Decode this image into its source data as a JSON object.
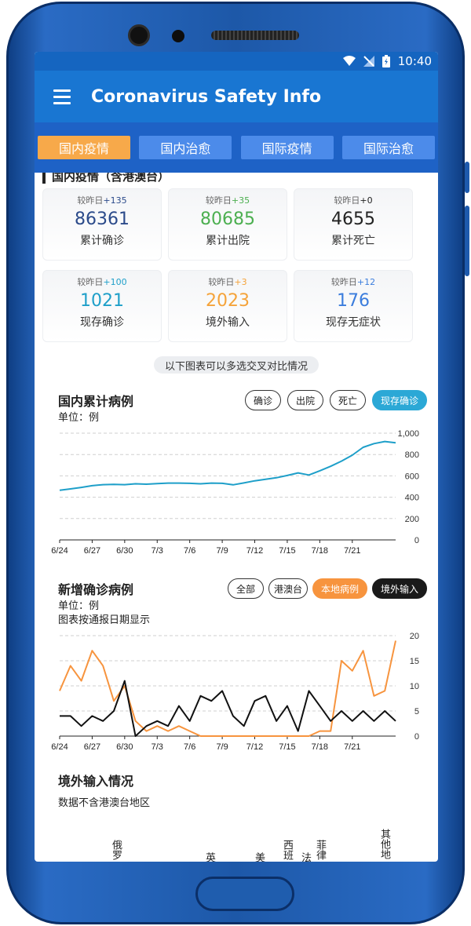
{
  "status_bar": {
    "time": "10:40"
  },
  "app_bar": {
    "title": "Coronavirus Safety Info"
  },
  "tabs": [
    {
      "label": "国内疫情",
      "active": true
    },
    {
      "label": "国内治愈",
      "active": false
    },
    {
      "label": "国际疫情",
      "active": false
    },
    {
      "label": "国际治愈",
      "active": false
    }
  ],
  "section_heading": "国内疫情（含港澳台）",
  "stats": [
    {
      "delta_label": "较昨日",
      "delta": "+135",
      "value": "86361",
      "label": "累计确诊",
      "color": "#2b4a8a"
    },
    {
      "delta_label": "较昨日",
      "delta": "+35",
      "value": "80685",
      "label": "累计出院",
      "color": "#4caf50"
    },
    {
      "delta_label": "较昨日",
      "delta": "+0",
      "value": "4655",
      "label": "累计死亡",
      "color": "#222222"
    },
    {
      "delta_label": "较昨日",
      "delta": "+100",
      "value": "1021",
      "label": "现存确诊",
      "color": "#1e9fc9"
    },
    {
      "delta_label": "较昨日",
      "delta": "+3",
      "value": "2023",
      "label": "境外输入",
      "color": "#f5a33a"
    },
    {
      "delta_label": "较昨日",
      "delta": "+12",
      "value": "176",
      "label": "现存无症状",
      "color": "#3b7ddd"
    }
  ],
  "hint": "以下图表可以多选交叉对比情况",
  "cumulative": {
    "title": "国内累计病例",
    "unit": "单位：例",
    "buttons": [
      {
        "label": "确诊",
        "selected": false
      },
      {
        "label": "出院",
        "selected": false
      },
      {
        "label": "死亡",
        "selected": false
      },
      {
        "label": "现存确诊",
        "selected": true
      }
    ]
  },
  "daily": {
    "title": "新增确诊病例",
    "unit": "单位：例",
    "note": "图表按通报日期显示",
    "buttons": [
      {
        "label": "全部",
        "style": "outline"
      },
      {
        "label": "港澳台",
        "style": "outline"
      },
      {
        "label": "本地病例",
        "style": "orange"
      },
      {
        "label": "境外输入",
        "style": "black"
      }
    ]
  },
  "imports": {
    "title": "境外输入情况",
    "note": "数据不含港澳台地区",
    "countries": [
      "俄罗",
      "英",
      "美",
      "西班",
      "法",
      "菲律",
      "其他地"
    ]
  },
  "chart_data": [
    {
      "type": "line",
      "title": "国内累计病例",
      "ylabel": "单位：例",
      "ylim": [
        0,
        1000
      ],
      "yticks": [
        0,
        200,
        400,
        600,
        800,
        1000
      ],
      "ytick_labels": [
        "0",
        "200",
        "400",
        "600",
        "800",
        "1,000"
      ],
      "x_tick_labels": [
        "6/24",
        "6/27",
        "6/30",
        "7/3",
        "7/6",
        "7/9",
        "7/12",
        "7/15",
        "7/18",
        "7/21"
      ],
      "series": [
        {
          "name": "现存确诊",
          "color": "#1e9fc9",
          "values": [
            465,
            478,
            492,
            508,
            518,
            520,
            518,
            526,
            522,
            528,
            532,
            532,
            530,
            526,
            532,
            530,
            516,
            534,
            554,
            568,
            582,
            604,
            628,
            608,
            648,
            690,
            738,
            794,
            868,
            902,
            922,
            910
          ]
        }
      ],
      "grid": true
    },
    {
      "type": "line",
      "title": "新增确诊病例",
      "ylabel": "单位：例",
      "ylim": [
        0,
        20
      ],
      "yticks": [
        0,
        5,
        10,
        15,
        20
      ],
      "x_tick_labels": [
        "6/24",
        "6/27",
        "6/30",
        "7/3",
        "7/6",
        "7/9",
        "7/12",
        "7/15",
        "7/18",
        "7/21"
      ],
      "series": [
        {
          "name": "本地病例",
          "color": "#f7943e",
          "values": [
            9,
            14,
            11,
            17,
            14,
            7,
            10,
            3,
            1,
            2,
            1,
            2,
            1,
            0,
            0,
            0,
            0,
            0,
            0,
            0,
            0,
            0,
            0,
            0,
            1,
            1,
            15,
            13,
            17,
            8,
            9,
            19
          ]
        },
        {
          "name": "境外输入",
          "color": "#111111",
          "values": [
            4,
            4,
            2,
            4,
            3,
            5,
            11,
            0,
            2,
            3,
            2,
            6,
            3,
            8,
            7,
            9,
            4,
            2,
            7,
            8,
            3,
            6,
            1,
            9,
            6,
            3,
            5,
            3,
            5,
            3,
            5,
            3
          ]
        }
      ],
      "grid": true
    }
  ]
}
